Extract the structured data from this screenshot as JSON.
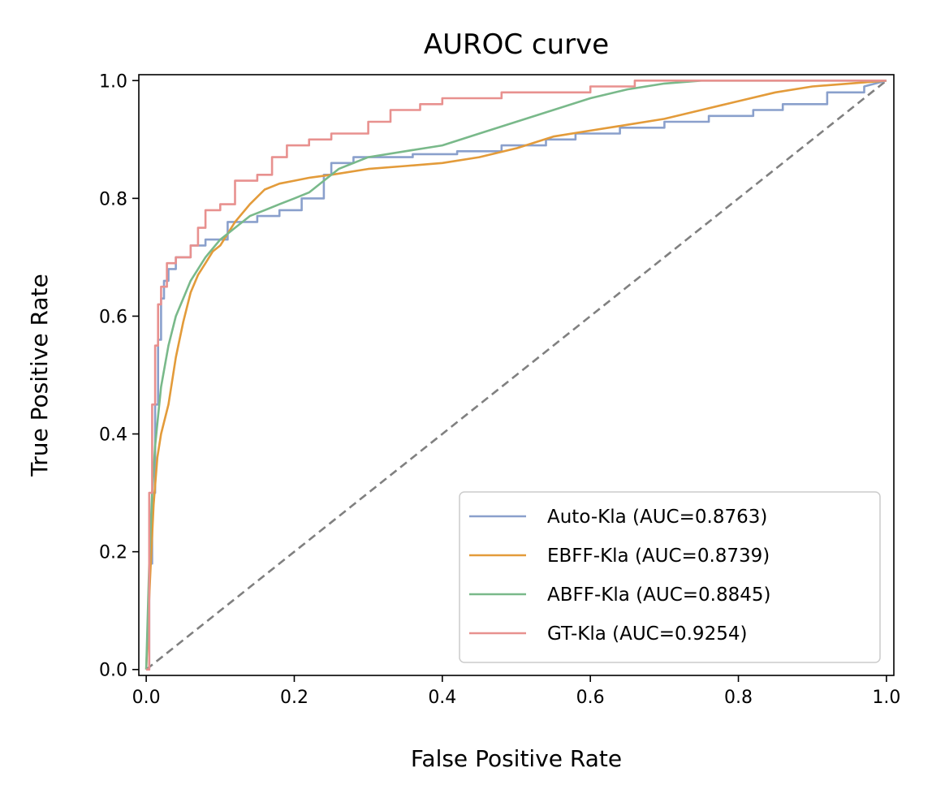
{
  "chart_data": {
    "type": "line",
    "title": "AUROC curve",
    "xlabel": "False Positive Rate",
    "ylabel": "True Positive Rate",
    "xlim": [
      -0.01,
      1.01
    ],
    "ylim": [
      -0.01,
      1.01
    ],
    "xticks": [
      "0.0",
      "0.2",
      "0.4",
      "0.6",
      "0.8",
      "1.0"
    ],
    "yticks": [
      "0.0",
      "0.2",
      "0.4",
      "0.6",
      "0.8",
      "1.0"
    ],
    "grid": false,
    "legend_position": "lower-right",
    "diagonal": {
      "x": [
        0,
        1
      ],
      "y": [
        0,
        1
      ],
      "color": "#808080",
      "style": "dashed"
    },
    "series": [
      {
        "name": "Auto-Kla (AUC=0.8763)",
        "color": "#8aa0cc",
        "x": [
          0,
          0.004,
          0.004,
          0.008,
          0.008,
          0.012,
          0.012,
          0.016,
          0.016,
          0.02,
          0.02,
          0.024,
          0.024,
          0.03,
          0.03,
          0.04,
          0.04,
          0.06,
          0.06,
          0.08,
          0.08,
          0.11,
          0.11,
          0.15,
          0.15,
          0.18,
          0.18,
          0.21,
          0.21,
          0.24,
          0.24,
          0.25,
          0.25,
          0.28,
          0.28,
          0.36,
          0.36,
          0.42,
          0.42,
          0.48,
          0.48,
          0.54,
          0.54,
          0.58,
          0.58,
          0.64,
          0.64,
          0.7,
          0.7,
          0.76,
          0.76,
          0.82,
          0.82,
          0.86,
          0.86,
          0.92,
          0.92,
          0.97,
          0.97,
          1.0
        ],
        "y": [
          0,
          0,
          0.18,
          0.18,
          0.3,
          0.3,
          0.45,
          0.45,
          0.56,
          0.56,
          0.63,
          0.63,
          0.66,
          0.66,
          0.68,
          0.68,
          0.7,
          0.7,
          0.72,
          0.72,
          0.73,
          0.73,
          0.76,
          0.76,
          0.77,
          0.77,
          0.78,
          0.78,
          0.8,
          0.8,
          0.84,
          0.84,
          0.86,
          0.86,
          0.87,
          0.87,
          0.875,
          0.875,
          0.88,
          0.88,
          0.89,
          0.89,
          0.9,
          0.9,
          0.91,
          0.91,
          0.92,
          0.92,
          0.93,
          0.93,
          0.94,
          0.94,
          0.95,
          0.95,
          0.96,
          0.96,
          0.98,
          0.98,
          0.99,
          1.0
        ]
      },
      {
        "name": "EBFF-Kla (AUC=0.8739)",
        "color": "#e39b3a",
        "x": [
          0,
          0.005,
          0.01,
          0.015,
          0.02,
          0.03,
          0.04,
          0.05,
          0.06,
          0.07,
          0.08,
          0.09,
          0.1,
          0.11,
          0.12,
          0.14,
          0.16,
          0.18,
          0.2,
          0.22,
          0.25,
          0.3,
          0.35,
          0.4,
          0.45,
          0.5,
          0.55,
          0.6,
          0.65,
          0.7,
          0.75,
          0.8,
          0.85,
          0.9,
          1.0
        ],
        "y": [
          0,
          0.15,
          0.28,
          0.36,
          0.4,
          0.45,
          0.53,
          0.59,
          0.64,
          0.67,
          0.69,
          0.71,
          0.72,
          0.74,
          0.76,
          0.79,
          0.815,
          0.825,
          0.83,
          0.835,
          0.84,
          0.85,
          0.855,
          0.86,
          0.87,
          0.885,
          0.905,
          0.915,
          0.925,
          0.935,
          0.95,
          0.965,
          0.98,
          0.99,
          1.0
        ]
      },
      {
        "name": "ABFF-Kla (AUC=0.8845)",
        "color": "#79b98a",
        "x": [
          0,
          0.004,
          0.008,
          0.012,
          0.016,
          0.02,
          0.03,
          0.04,
          0.05,
          0.06,
          0.08,
          0.1,
          0.12,
          0.14,
          0.16,
          0.18,
          0.2,
          0.22,
          0.24,
          0.26,
          0.28,
          0.3,
          0.35,
          0.4,
          0.45,
          0.5,
          0.55,
          0.6,
          0.65,
          0.7,
          0.75,
          1.0
        ],
        "y": [
          0,
          0.18,
          0.3,
          0.38,
          0.43,
          0.48,
          0.55,
          0.6,
          0.63,
          0.66,
          0.7,
          0.73,
          0.75,
          0.77,
          0.78,
          0.79,
          0.8,
          0.81,
          0.83,
          0.85,
          0.86,
          0.87,
          0.88,
          0.89,
          0.91,
          0.93,
          0.95,
          0.97,
          0.985,
          0.995,
          1.0,
          1.0
        ]
      },
      {
        "name": "GT-Kla (AUC=0.9254)",
        "color": "#e8918f",
        "x": [
          0,
          0.004,
          0.004,
          0.008,
          0.008,
          0.012,
          0.012,
          0.016,
          0.016,
          0.02,
          0.02,
          0.028,
          0.028,
          0.04,
          0.04,
          0.06,
          0.06,
          0.07,
          0.07,
          0.08,
          0.08,
          0.1,
          0.1,
          0.12,
          0.12,
          0.15,
          0.15,
          0.17,
          0.17,
          0.19,
          0.19,
          0.22,
          0.22,
          0.25,
          0.25,
          0.3,
          0.3,
          0.33,
          0.33,
          0.37,
          0.37,
          0.4,
          0.4,
          0.48,
          0.48,
          0.6,
          0.6,
          0.66,
          0.66,
          1.0
        ],
        "y": [
          0,
          0,
          0.3,
          0.3,
          0.45,
          0.45,
          0.55,
          0.55,
          0.62,
          0.62,
          0.65,
          0.65,
          0.69,
          0.69,
          0.7,
          0.7,
          0.72,
          0.72,
          0.75,
          0.75,
          0.78,
          0.78,
          0.79,
          0.79,
          0.83,
          0.83,
          0.84,
          0.84,
          0.87,
          0.87,
          0.89,
          0.89,
          0.9,
          0.9,
          0.91,
          0.91,
          0.93,
          0.93,
          0.95,
          0.95,
          0.96,
          0.96,
          0.97,
          0.97,
          0.98,
          0.98,
          0.99,
          0.99,
          1.0,
          1.0
        ]
      }
    ]
  }
}
